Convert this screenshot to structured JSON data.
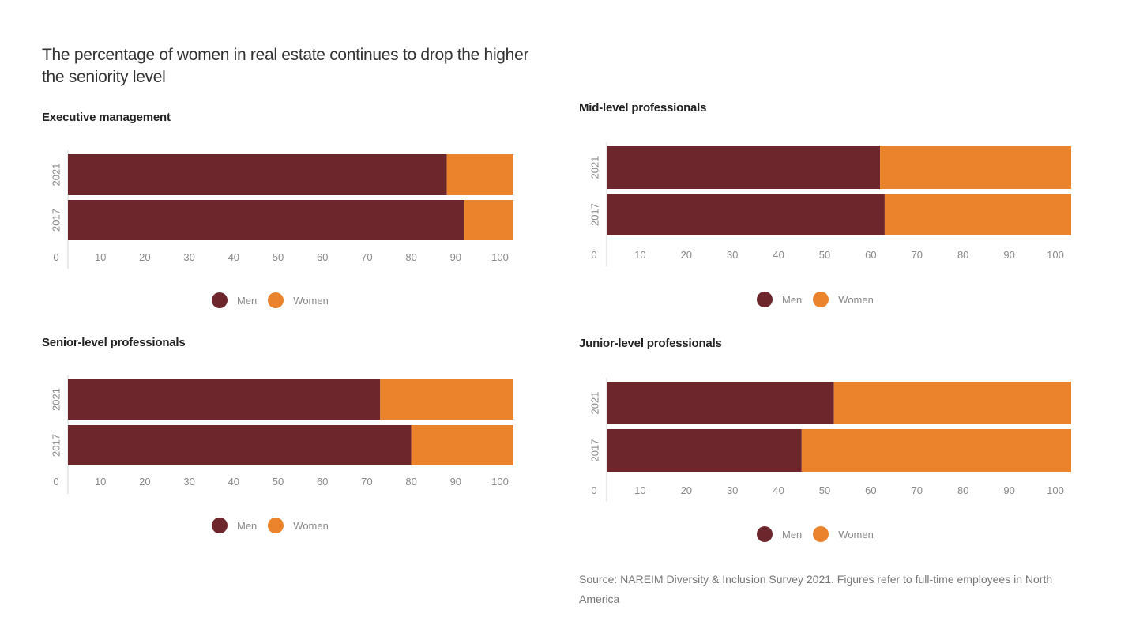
{
  "title": "The percentage of women in real estate continues to drop the higher the seniority level",
  "source": "Source: NAREIM Diversity & Inclusion Survey 2021. Figures refer to full-time employees in North America",
  "colors": {
    "men": "#6e262d",
    "women": "#ea832c"
  },
  "legend": [
    {
      "label": "Men",
      "color": "#6e262d"
    },
    {
      "label": "Women",
      "color": "#ea832c"
    }
  ],
  "chart_data": [
    {
      "type": "bar",
      "orientation": "horizontal",
      "stacked": true,
      "title": "Executive management",
      "categories": [
        "2021",
        "2017"
      ],
      "series": [
        {
          "name": "Men",
          "values": [
            88,
            92
          ]
        },
        {
          "name": "Women",
          "values": [
            12,
            8
          ]
        }
      ],
      "xticks": [
        "0",
        "10",
        "20",
        "30",
        "40",
        "50",
        "60",
        "70",
        "80",
        "90",
        "100"
      ],
      "xlim": [
        0,
        100
      ],
      "legend": "bottom"
    },
    {
      "type": "bar",
      "orientation": "horizontal",
      "stacked": true,
      "title": "Mid-level professionals",
      "categories": [
        "2021",
        "2017"
      ],
      "series": [
        {
          "name": "Men",
          "values": [
            62,
            63
          ]
        },
        {
          "name": "Women",
          "values": [
            38,
            37
          ]
        }
      ],
      "xticks": [
        "0",
        "10",
        "20",
        "30",
        "40",
        "50",
        "60",
        "70",
        "80",
        "90",
        "100"
      ],
      "xlim": [
        0,
        100
      ],
      "legend": "bottom"
    },
    {
      "type": "bar",
      "orientation": "horizontal",
      "stacked": true,
      "title": "Senior-level professionals",
      "categories": [
        "2021",
        "2017"
      ],
      "series": [
        {
          "name": "Men",
          "values": [
            73,
            80
          ]
        },
        {
          "name": "Women",
          "values": [
            27,
            20
          ]
        }
      ],
      "xticks": [
        "0",
        "10",
        "20",
        "30",
        "40",
        "50",
        "60",
        "70",
        "80",
        "90",
        "100"
      ],
      "xlim": [
        0,
        100
      ],
      "legend": "bottom"
    },
    {
      "type": "bar",
      "orientation": "horizontal",
      "stacked": true,
      "title": "Junior-level professionals",
      "categories": [
        "2021",
        "2017"
      ],
      "series": [
        {
          "name": "Men",
          "values": [
            52,
            45
          ]
        },
        {
          "name": "Women",
          "values": [
            48,
            55
          ]
        }
      ],
      "xticks": [
        "0",
        "10",
        "20",
        "30",
        "40",
        "50",
        "60",
        "70",
        "80",
        "90",
        "100"
      ],
      "xlim": [
        0,
        100
      ],
      "legend": "bottom"
    }
  ]
}
